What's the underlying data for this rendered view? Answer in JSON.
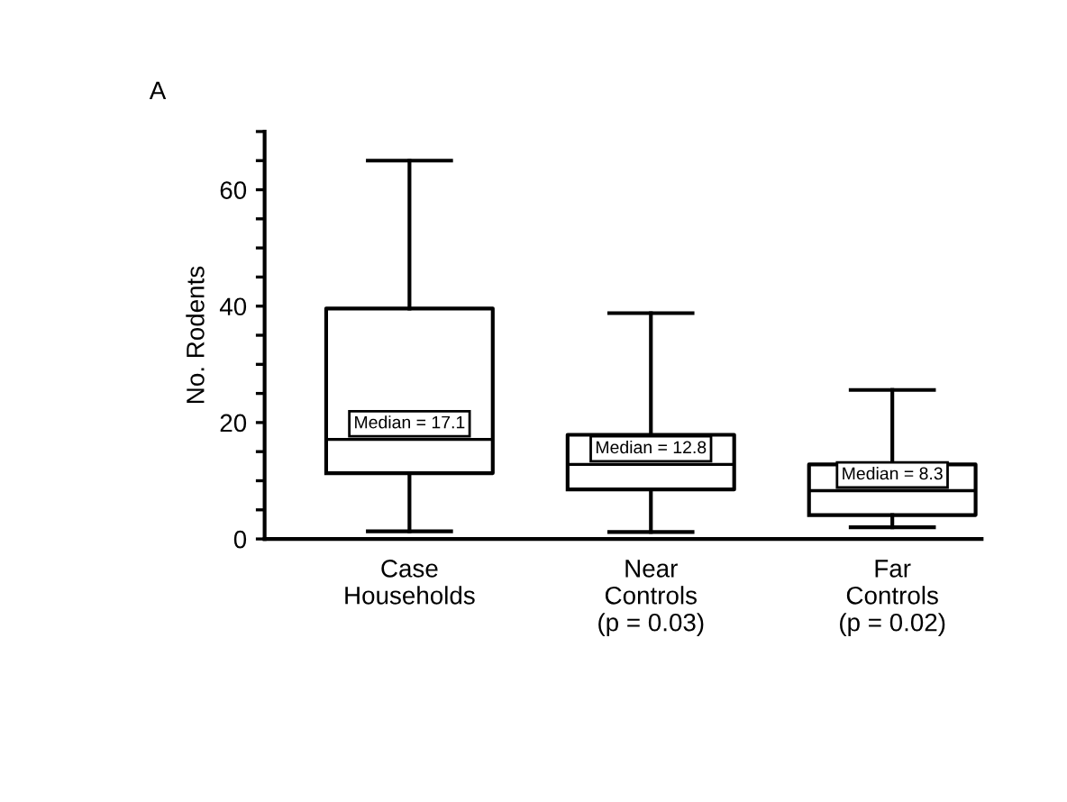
{
  "chart_data": {
    "type": "box",
    "title": "A",
    "ylabel": "No. Rodents",
    "categories": [
      "Case\nHouseholds",
      "Near\nControls\n(p = 0.03)",
      "Far\nControls\n(p = 0.02)"
    ],
    "boxes": [
      {
        "low": 1.3,
        "q1": 11.3,
        "median": 17.1,
        "q3": 39.6,
        "high": 65
      },
      {
        "low": 1.2,
        "q1": 8.5,
        "median": 12.8,
        "q3": 17.9,
        "high": 38.8
      },
      {
        "low": 2.0,
        "q1": 4.1,
        "median": 8.3,
        "q3": 12.8,
        "high": 25.6
      }
    ],
    "annotations": [
      {
        "text": "Median = 17.1",
        "x": "Case\nHouseholds",
        "y": 17.1
      },
      {
        "text": "Median = 12.8",
        "x": "Near\nControls\n(p = 0.03)",
        "y": 12.8
      },
      {
        "text": "Median = 8.3",
        "x": "Far\nControls\n(p = 0.02)",
        "y": 8.3
      }
    ],
    "ylim": [
      0,
      70
    ],
    "yticks": [
      0,
      {
        "value": 5,
        "label": null
      },
      {
        "value": 10,
        "label": null
      },
      {
        "value": 15,
        "label": null
      },
      20,
      {
        "value": 25,
        "label": null
      },
      {
        "value": 30,
        "label": null
      },
      {
        "value": 35,
        "label": null
      },
      40,
      {
        "value": 45,
        "label": null
      },
      {
        "value": 50,
        "label": null
      },
      {
        "value": 55,
        "label": null
      },
      60,
      {
        "value": 65,
        "label": null
      },
      {
        "value": 70,
        "label": null
      }
    ],
    "grid": false,
    "legend": false
  }
}
